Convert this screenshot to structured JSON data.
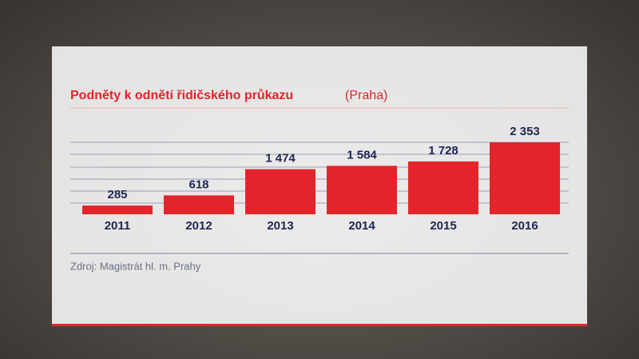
{
  "chart_data": {
    "type": "bar",
    "title": "Podněty k odnětí řidičského průkazu",
    "subtitle": "(Praha)",
    "source": "Zdroj: Magistrát hl. m. Prahy",
    "categories": [
      "2011",
      "2012",
      "2013",
      "2014",
      "2015",
      "2016"
    ],
    "values": [
      285,
      618,
      1474,
      1584,
      1728,
      2353
    ],
    "value_labels": [
      "285",
      "618",
      "1 474",
      "1 584",
      "1 728",
      "2 353"
    ],
    "color": "#e3242b"
  }
}
